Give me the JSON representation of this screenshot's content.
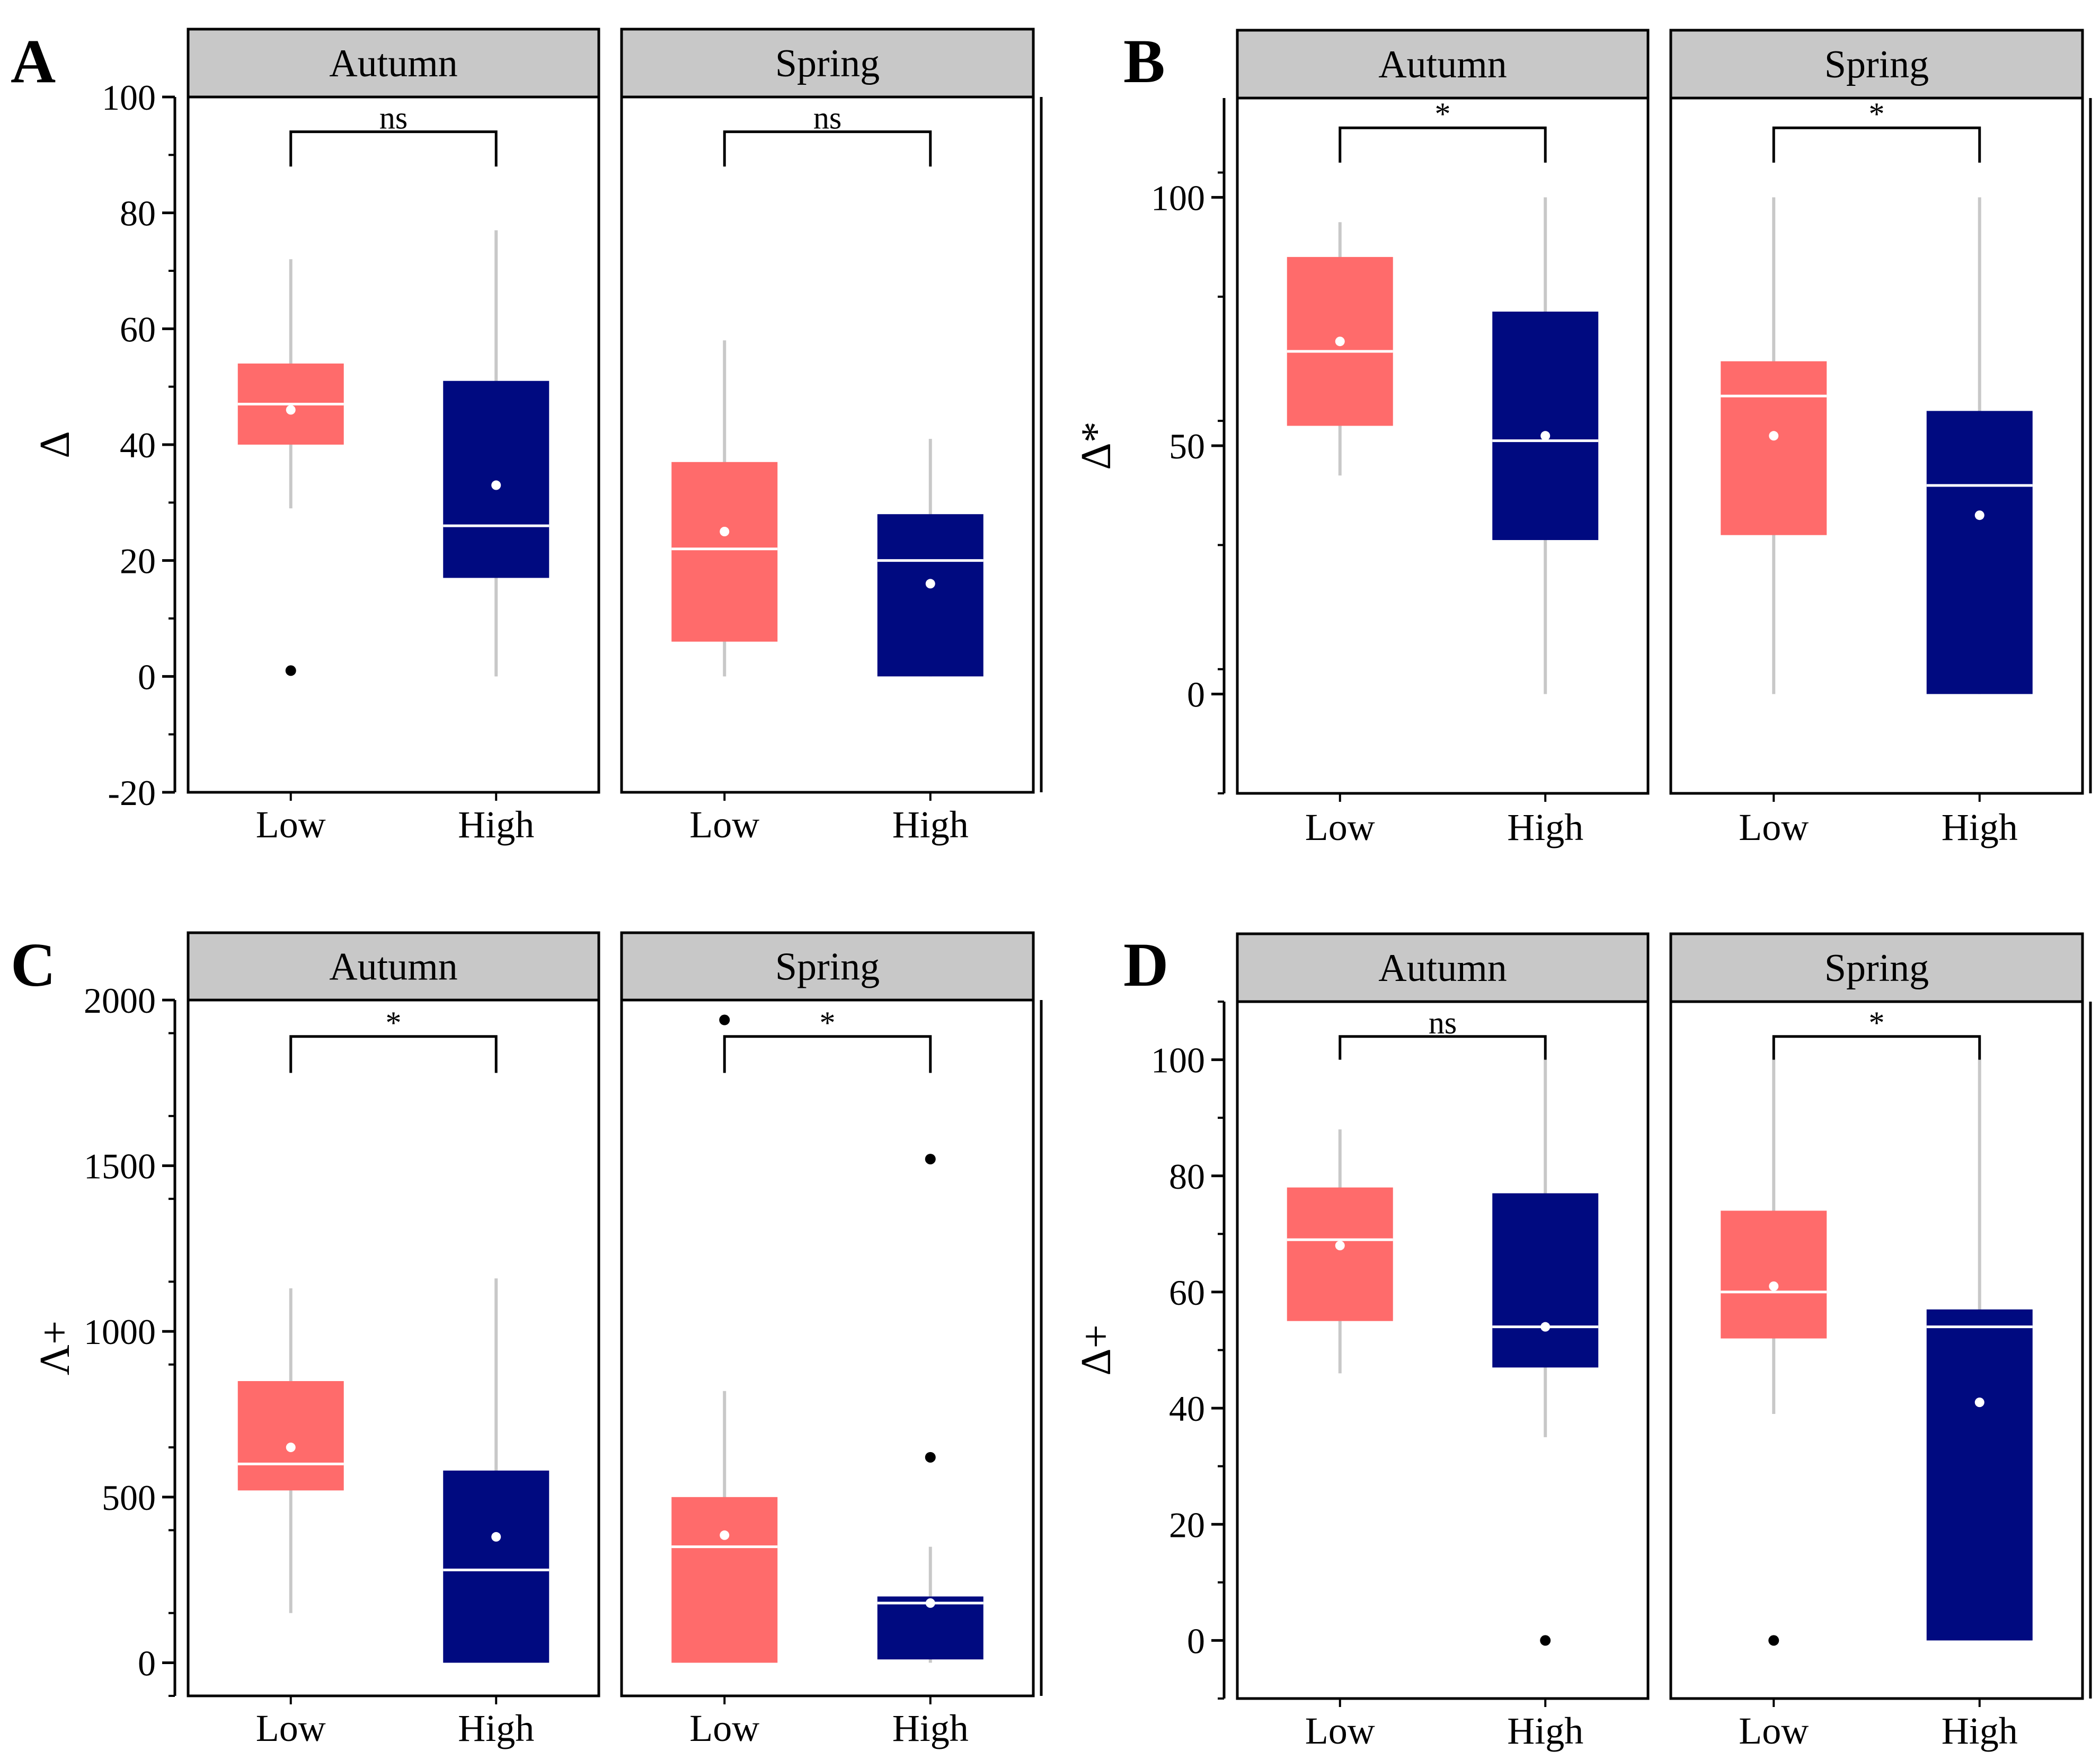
{
  "colors": {
    "low": "#ff6b6b",
    "high": "#000a80",
    "whisker": "#c8c8c8",
    "median": "#ffffff",
    "mean": "#ffffff",
    "outlier": "#000000",
    "strip": "#c8c8c8"
  },
  "chart_data": [
    {
      "type": "box",
      "panel": "A",
      "ylabel": "Δ",
      "ylim": [
        -20,
        100
      ],
      "yticks": [
        -20,
        0,
        20,
        40,
        60,
        80,
        100
      ],
      "ytick_labels": [
        "-20",
        "0",
        "20",
        "40",
        "60",
        "80",
        "100"
      ],
      "minor_step": 10,
      "categories": [
        "Low",
        "High"
      ],
      "facets": [
        {
          "name": "Autumn",
          "significance": "ns",
          "bracket_y": 94,
          "bracket_drop": 6,
          "boxes": [
            {
              "group": "Low",
              "whisker_low": 29,
              "q1": 40,
              "median": 47,
              "q3": 54,
              "whisker_high": 72,
              "mean": 46,
              "outliers": [
                1
              ]
            },
            {
              "group": "High",
              "whisker_low": 0,
              "q1": 17,
              "median": 26,
              "q3": 51,
              "whisker_high": 77,
              "mean": 33,
              "outliers": []
            }
          ]
        },
        {
          "name": "Spring",
          "significance": "ns",
          "bracket_y": 94,
          "bracket_drop": 6,
          "boxes": [
            {
              "group": "Low",
              "whisker_low": 0,
              "q1": 6,
              "median": 22,
              "q3": 37,
              "whisker_high": 58,
              "mean": 25,
              "outliers": []
            },
            {
              "group": "High",
              "whisker_low": 0,
              "q1": 0,
              "median": 20,
              "q3": 28,
              "whisker_high": 41,
              "mean": 16,
              "outliers": []
            }
          ]
        }
      ]
    },
    {
      "type": "box",
      "panel": "B",
      "ylabel": "Δ*",
      "ylim": [
        -20,
        120
      ],
      "yticks": [
        0,
        50,
        100
      ],
      "ytick_labels": [
        "0",
        "50",
        "100"
      ],
      "minor_step": 25,
      "categories": [
        "Low",
        "High"
      ],
      "facets": [
        {
          "name": "Autumn",
          "significance": "*",
          "bracket_y": 114,
          "bracket_drop": 7,
          "boxes": [
            {
              "group": "Low",
              "whisker_low": 44,
              "q1": 54,
              "median": 69,
              "q3": 88,
              "whisker_high": 95,
              "mean": 71,
              "outliers": []
            },
            {
              "group": "High",
              "whisker_low": 0,
              "q1": 31,
              "median": 51,
              "q3": 77,
              "whisker_high": 100,
              "mean": 52,
              "outliers": []
            }
          ]
        },
        {
          "name": "Spring",
          "significance": "*",
          "bracket_y": 114,
          "bracket_drop": 7,
          "boxes": [
            {
              "group": "Low",
              "whisker_low": 0,
              "q1": 32,
              "median": 60,
              "q3": 67,
              "whisker_high": 100,
              "mean": 52,
              "outliers": []
            },
            {
              "group": "High",
              "whisker_low": 0,
              "q1": 0,
              "median": 42,
              "q3": 57,
              "whisker_high": 100,
              "mean": 36,
              "outliers": []
            }
          ]
        }
      ]
    },
    {
      "type": "box",
      "panel": "C",
      "ylabel": "Λ+",
      "ylim": [
        -100,
        2000
      ],
      "yticks": [
        0,
        500,
        1000,
        1500,
        2000
      ],
      "ytick_labels": [
        "0",
        "500",
        "1000",
        "1500",
        "2000"
      ],
      "minor_step": 250,
      "categories": [
        "Low",
        "High"
      ],
      "facets": [
        {
          "name": "Autumn",
          "significance": "*",
          "bracket_y": 1890,
          "bracket_drop": 110,
          "boxes": [
            {
              "group": "Low",
              "whisker_low": 150,
              "q1": 520,
              "median": 600,
              "q3": 850,
              "whisker_high": 1130,
              "mean": 650,
              "outliers": []
            },
            {
              "group": "High",
              "whisker_low": 0,
              "q1": 0,
              "median": 280,
              "q3": 580,
              "whisker_high": 1160,
              "mean": 380,
              "outliers": []
            }
          ]
        },
        {
          "name": "Spring",
          "significance": "*",
          "bracket_y": 1890,
          "bracket_drop": 110,
          "boxes": [
            {
              "group": "Low",
              "whisker_low": 0,
              "q1": 0,
              "median": 350,
              "q3": 500,
              "whisker_high": 820,
              "mean": 385,
              "outliers": [
                1940
              ]
            },
            {
              "group": "High",
              "whisker_low": 0,
              "q1": 10,
              "median": 180,
              "q3": 200,
              "whisker_high": 350,
              "mean": 180,
              "outliers": [
                620,
                1520
              ]
            }
          ]
        }
      ]
    },
    {
      "type": "box",
      "panel": "D",
      "ylabel": "Δ+",
      "ylim": [
        -10,
        110
      ],
      "yticks": [
        0,
        20,
        40,
        60,
        80,
        100
      ],
      "ytick_labels": [
        "0",
        "20",
        "40",
        "60",
        "80",
        "100"
      ],
      "minor_step": 10,
      "categories": [
        "Low",
        "High"
      ],
      "facets": [
        {
          "name": "Autumn",
          "significance": "ns",
          "bracket_y": 104,
          "bracket_drop": 4,
          "boxes": [
            {
              "group": "Low",
              "whisker_low": 46,
              "q1": 55,
              "median": 69,
              "q3": 78,
              "whisker_high": 88,
              "mean": 68,
              "outliers": []
            },
            {
              "group": "High",
              "whisker_low": 35,
              "q1": 47,
              "median": 54,
              "q3": 77,
              "whisker_high": 100,
              "mean": 54,
              "outliers": [
                0
              ]
            }
          ]
        },
        {
          "name": "Spring",
          "significance": "*",
          "bracket_y": 104,
          "bracket_drop": 4,
          "boxes": [
            {
              "group": "Low",
              "whisker_low": 39,
              "q1": 52,
              "median": 60,
              "q3": 74,
              "whisker_high": 100,
              "mean": 61,
              "outliers": [
                0
              ]
            },
            {
              "group": "High",
              "whisker_low": 0,
              "q1": 0,
              "median": 54,
              "q3": 57,
              "whisker_high": 100,
              "mean": 41,
              "outliers": []
            }
          ]
        }
      ]
    }
  ]
}
